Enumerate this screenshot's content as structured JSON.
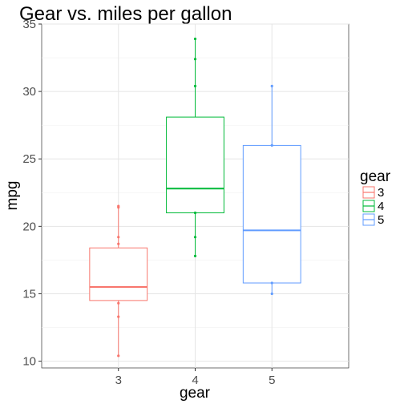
{
  "chart_data": {
    "type": "boxplot",
    "title": "Gear vs. miles per gallon",
    "xlabel": "gear",
    "ylabel": "mpg",
    "ylim": [
      9.5,
      35
    ],
    "y_ticks": [
      10,
      15,
      20,
      25,
      30,
      35
    ],
    "categories": [
      "3",
      "4",
      "5"
    ],
    "legend": {
      "title": "gear",
      "placement": "right",
      "labels": [
        "3",
        "4",
        "5"
      ]
    },
    "grid": true,
    "series": [
      {
        "name": "3",
        "color": "#F8766D",
        "min": 10.4,
        "q1": 14.5,
        "median": 15.5,
        "q3": 18.4,
        "max": 21.5,
        "points": [
          10.4,
          13.3,
          14.3,
          18.7,
          19.2,
          21.4,
          21.5
        ]
      },
      {
        "name": "4",
        "color": "#00BA38",
        "min": 17.8,
        "q1": 21.0,
        "median": 22.8,
        "q3": 28.1,
        "max": 33.9,
        "points": [
          17.8,
          19.2,
          21.0,
          30.4,
          32.4,
          33.9
        ]
      },
      {
        "name": "5",
        "color": "#619CFF",
        "min": 15.0,
        "q1": 15.8,
        "median": 19.7,
        "q3": 26.0,
        "max": 30.4,
        "points": [
          15.0,
          15.8,
          26.0,
          30.4
        ]
      }
    ]
  }
}
